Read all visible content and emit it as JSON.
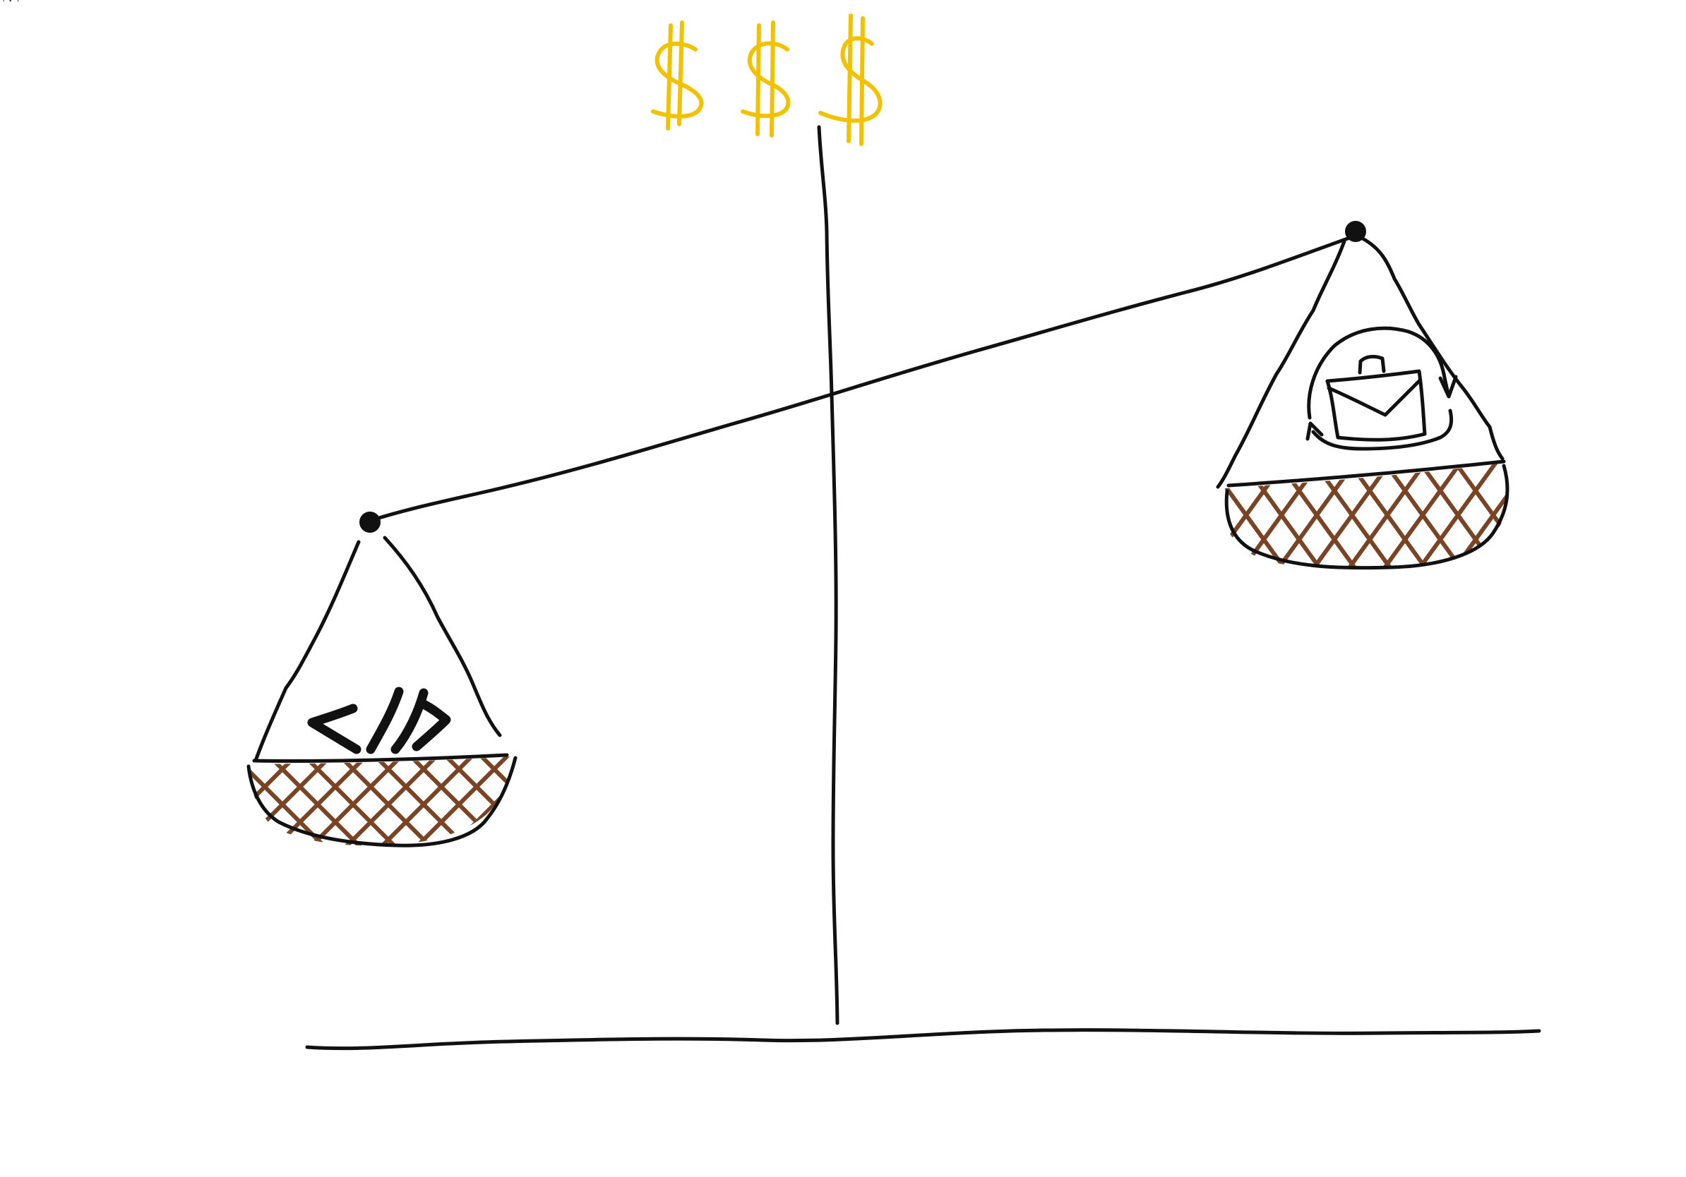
{
  "diagram": {
    "symbol_top": "$$$",
    "left_pan": {
      "icon": "code-brackets-icon",
      "glyph": "</>"
    },
    "right_pan": {
      "icon": "briefcase-cycle-icon"
    },
    "colors": {
      "ink": "#111111",
      "dollar": "#f2c200",
      "basket_weave": "#7a4424",
      "background": "#ffffff"
    }
  }
}
